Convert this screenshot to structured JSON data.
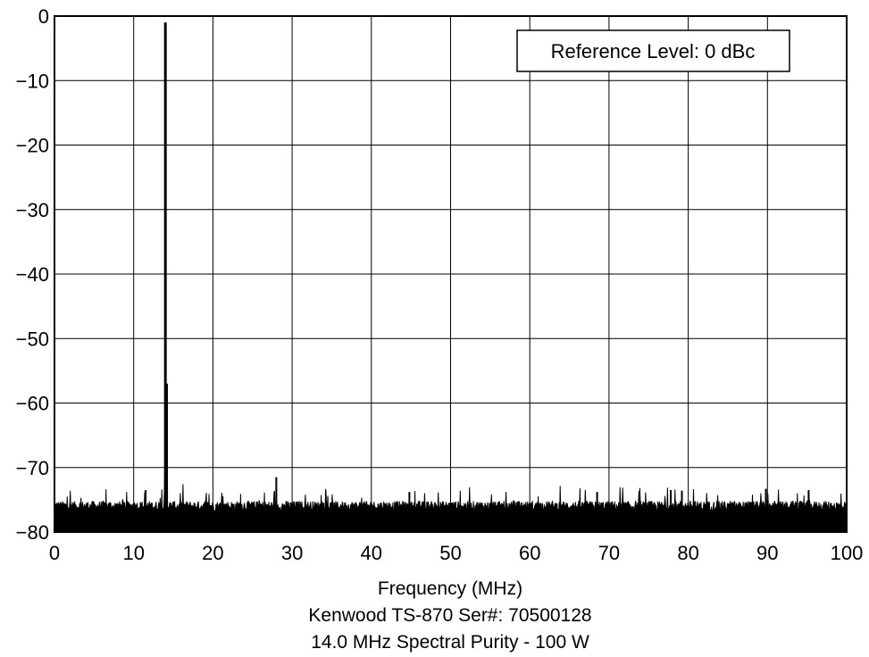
{
  "chart_data": {
    "type": "line",
    "x_min": 0,
    "x_max": 100,
    "ylim": [
      -80,
      0
    ],
    "grid": true,
    "x_ticks": [
      0,
      10,
      20,
      30,
      40,
      50,
      60,
      70,
      80,
      90,
      100
    ],
    "y_ticks": [
      0,
      -10,
      -20,
      -30,
      -40,
      -50,
      -60,
      -70,
      -80
    ],
    "x_tick_labels": [
      "0",
      "10",
      "20",
      "30",
      "40",
      "50",
      "60",
      "70",
      "80",
      "90",
      "100"
    ],
    "y_tick_labels": [
      "0",
      "−10",
      "−20",
      "−30",
      "−40",
      "−50",
      "−60",
      "−70",
      "−80"
    ],
    "xlabel": "Frequency (MHz)",
    "title_line1": "Kenwood TS-870 Ser#: 70500128",
    "title_line2": "14.0 MHz Spectral Purity - 100 W",
    "annotation": "Reference Level: 0 dBc",
    "annotation_placement": "top-right",
    "noise_floor_dbc": -76,
    "noise_floor_min_dbc": -80,
    "spurs": [
      {
        "x": 14.0,
        "y": -1
      },
      {
        "x": 14.2,
        "y": -57
      },
      {
        "x": 28.0,
        "y": -71.5
      },
      {
        "x": 11.5,
        "y": -73.5
      },
      {
        "x": 44.8,
        "y": -73.8
      },
      {
        "x": 68.5,
        "y": -73.8
      },
      {
        "x": 77.8,
        "y": -73.5
      },
      {
        "x": 79.2,
        "y": -73.6
      },
      {
        "x": 89.8,
        "y": -73.3
      },
      {
        "x": 95.2,
        "y": -73.5
      }
    ],
    "line_color": "#000000"
  }
}
